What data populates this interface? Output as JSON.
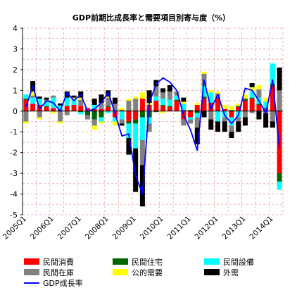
{
  "chart_data": {
    "type": "bar",
    "title": "GDP前期比成長率と需要項目別寄与度（%）",
    "ylim": [
      -5,
      4
    ],
    "yticks": [
      -5,
      -4,
      -3,
      -2,
      -1,
      0,
      1,
      2,
      3,
      4
    ],
    "grid": true,
    "legend_position": "bottom",
    "categories": [
      "2005Q1",
      "2005Q2",
      "2005Q3",
      "2005Q4",
      "2006Q1",
      "2006Q2",
      "2006Q3",
      "2006Q4",
      "2007Q1",
      "2007Q2",
      "2007Q3",
      "2007Q4",
      "2008Q1",
      "2008Q2",
      "2008Q3",
      "2008Q4",
      "2009Q1",
      "2009Q2",
      "2009Q3",
      "2009Q4",
      "2010Q1",
      "2010Q2",
      "2010Q3",
      "2010Q4",
      "2011Q1",
      "2011Q2",
      "2011Q3",
      "2011Q4",
      "2012Q1",
      "2012Q2",
      "2012Q3",
      "2012Q4",
      "2013Q1",
      "2013Q2",
      "2013Q3",
      "2013Q4",
      "2014Q1",
      "2014Q2"
    ],
    "tick_labels": [
      "2005Q1",
      "2006Q1",
      "2007Q1",
      "2008Q1",
      "2009Q1",
      "2010Q1",
      "2011Q1",
      "2012Q1",
      "2013Q1",
      "2014Q1"
    ],
    "tick_label_indices": [
      0,
      4,
      8,
      12,
      16,
      20,
      24,
      28,
      32,
      36
    ],
    "series": [
      {
        "name": "民間消費",
        "type": "bar",
        "color": "#ff0000",
        "values": [
          0.55,
          0.35,
          0.3,
          0.2,
          0.15,
          0.05,
          0.25,
          0.3,
          0.25,
          0.15,
          0.1,
          0.1,
          0.2,
          -0.3,
          0.05,
          -0.5,
          -0.4,
          0.6,
          0.3,
          0.5,
          0.25,
          0.2,
          0.5,
          -0.4,
          -0.3,
          0.3,
          0.6,
          0.4,
          0.6,
          0.1,
          -0.3,
          0.2,
          0.5,
          0.6,
          0.3,
          0.1,
          1.2,
          -3.0
        ]
      },
      {
        "name": "民間住宅",
        "type": "bar",
        "color": "#006400",
        "values": [
          0.05,
          0.0,
          0.0,
          0.05,
          -0.02,
          0.02,
          0.0,
          0.0,
          -0.05,
          -0.2,
          -0.4,
          -0.3,
          0.05,
          0.05,
          0.0,
          -0.1,
          -0.2,
          -0.3,
          -0.3,
          -0.05,
          0.05,
          0.05,
          0.05,
          0.05,
          0.05,
          -0.1,
          0.1,
          0.0,
          0.05,
          0.0,
          0.05,
          0.05,
          0.1,
          0.05,
          0.05,
          0.05,
          0.1,
          -0.4
        ]
      },
      {
        "name": "民間設備",
        "type": "bar",
        "color": "#00ffff",
        "values": [
          0.2,
          0.3,
          0.3,
          0.2,
          0.5,
          0.2,
          0.4,
          0.3,
          -0.1,
          0.0,
          0.2,
          -0.2,
          -0.1,
          -0.2,
          -0.4,
          -0.7,
          -1.2,
          -1.1,
          -0.3,
          0.2,
          0.3,
          0.3,
          0.2,
          0.3,
          -0.1,
          -0.2,
          0.5,
          0.5,
          -0.5,
          -0.3,
          -0.4,
          -0.3,
          0.0,
          0.3,
          0.3,
          0.3,
          1.0,
          -0.4
        ]
      },
      {
        "name": "民間在庫",
        "type": "bar",
        "color": "#808080",
        "values": [
          -0.5,
          0.1,
          -0.3,
          0.1,
          0.1,
          -0.5,
          -0.2,
          0.0,
          0.3,
          -0.2,
          -0.3,
          0.3,
          0.4,
          0.3,
          -0.2,
          0.5,
          0.6,
          -1.2,
          -0.4,
          0.5,
          0.3,
          0.4,
          0.2,
          -0.3,
          -0.2,
          -0.5,
          0.6,
          -0.4,
          0.2,
          -0.2,
          -0.3,
          -0.2,
          -0.3,
          -0.1,
          0.4,
          -0.1,
          -0.5,
          1.0
        ]
      },
      {
        "name": "公的需要",
        "type": "bar",
        "color": "#ffff00",
        "values": [
          -0.1,
          0.2,
          -0.1,
          0.0,
          -0.1,
          -0.1,
          0.0,
          0.05,
          0.1,
          0.0,
          -0.2,
          -0.1,
          0.05,
          -0.2,
          0.1,
          0.1,
          0.1,
          0.3,
          0.1,
          0.0,
          -0.1,
          0.0,
          0.0,
          0.1,
          0.0,
          0.1,
          0.1,
          0.1,
          0.1,
          0.2,
          0.2,
          0.1,
          0.2,
          0.2,
          0.2,
          0.2,
          0.0,
          0.0
        ]
      },
      {
        "name": "外需",
        "type": "bar",
        "color": "#000000",
        "values": [
          0.0,
          0.5,
          0.1,
          0.1,
          0.0,
          0.1,
          0.3,
          0.1,
          0.3,
          0.0,
          0.3,
          0.4,
          0.3,
          0.3,
          -0.1,
          -0.8,
          -2.1,
          -2.0,
          0.6,
          0.3,
          0.2,
          0.3,
          0.0,
          0.2,
          0.0,
          -0.8,
          -0.3,
          -0.5,
          -0.5,
          -0.5,
          -0.3,
          -0.5,
          -0.4,
          0.2,
          -0.4,
          -0.7,
          -0.3,
          1.1
        ]
      },
      {
        "name": "GDP成長率",
        "type": "line",
        "color": "#0000ff",
        "values": [
          0.2,
          1.2,
          0.1,
          0.5,
          0.4,
          0.0,
          0.9,
          0.5,
          0.8,
          0.0,
          0.1,
          0.4,
          0.9,
          -0.1,
          -1.2,
          -1.1,
          -3.1,
          -4.0,
          0.4,
          1.3,
          1.6,
          1.4,
          1.0,
          -0.2,
          -0.9,
          -1.9,
          1.5,
          0.1,
          0.8,
          -0.2,
          -0.6,
          -0.2,
          1.1,
          1.0,
          0.5,
          -0.1,
          1.5,
          -1.8
        ]
      }
    ],
    "legend": [
      {
        "name": "民間消費",
        "color": "#ff0000",
        "kind": "bar"
      },
      {
        "name": "民間住宅",
        "color": "#006400",
        "kind": "bar"
      },
      {
        "name": "民間設備",
        "color": "#00ffff",
        "kind": "bar"
      },
      {
        "name": "民間在庫",
        "color": "#808080",
        "kind": "bar"
      },
      {
        "name": "公的需要",
        "color": "#ffff00",
        "kind": "bar"
      },
      {
        "name": "外需",
        "color": "#000000",
        "kind": "bar"
      },
      {
        "name": "GDP成長率",
        "color": "#0000ff",
        "kind": "line"
      }
    ],
    "colors": {
      "grid": "#e8a0a0",
      "axis": "#000000"
    }
  }
}
